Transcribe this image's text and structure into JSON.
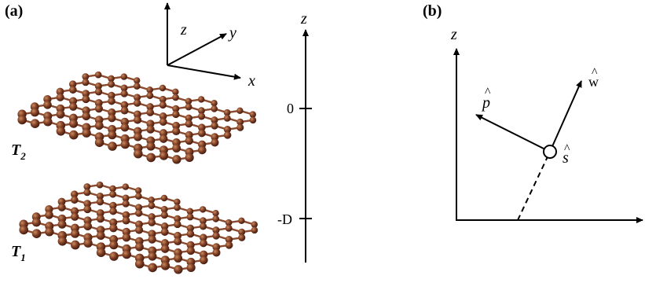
{
  "panel_a": {
    "label": "(a)",
    "axes3d": {
      "z": "z",
      "y": "y",
      "x": "x"
    },
    "layer_top": {
      "label_main": "T",
      "label_sub": "2"
    },
    "layer_bottom": {
      "label_main": "T",
      "label_sub": "1"
    },
    "z_axis": {
      "label": "z",
      "tick_zero": "0",
      "tick_minus": "-D"
    }
  },
  "panel_b": {
    "label": "(b)",
    "z_label": "z",
    "vector_p": "p",
    "vector_w": "w",
    "point_s": "s",
    "hat": "^"
  },
  "colors": {
    "atom": "#7a3a22",
    "atom_highlight": "#b9693f",
    "bond": "#8b4a2d",
    "ink": "#000000"
  }
}
